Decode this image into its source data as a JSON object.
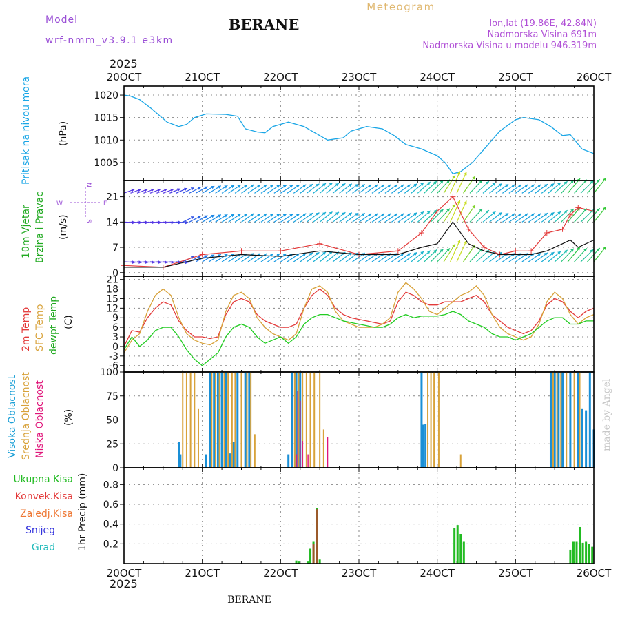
{
  "header": {
    "model_label": "Model",
    "model_name": "wrf-nmm_v3.9.1 e3km",
    "title": "BERANE",
    "meteogram_label": "Meteogram",
    "lonlat": "lon,lat (19.86E, 42.84N)",
    "altitude": "Nadmorska Visina 691m",
    "model_altitude": "Nadmorska Visina u modelu 946.319m",
    "year_top": "2025",
    "year_bottom": "2025",
    "footer": "BERANE",
    "watermark": "made by Angel"
  },
  "colors": {
    "pressure": "#1aa6e6",
    "t2m": "#e33a3a",
    "tsfc": "#d8a23a",
    "dewpt": "#22cc22",
    "high_cloud": "#1a8fd6",
    "mid_cloud": "#d8a23a",
    "low_cloud": "#e0157a",
    "total_rain": "#22bb22",
    "conv_rain": "#e33a3a",
    "frz_rain": "#ee7733",
    "snow": "#3333dd",
    "hail": "#22bbbb",
    "wind_purple": "#8a2be2"
  },
  "x_axis": {
    "ticks": [
      "20OCT",
      "21OCT",
      "22OCT",
      "23OCT",
      "24OCT",
      "25OCT",
      "26OCT"
    ]
  },
  "panels": {
    "pressure": {
      "ylabel": "Pritisak na nivou mora",
      "unit": "(hPa)"
    },
    "wind": {
      "ylabel1": "10m Vjetar",
      "ylabel2": "Brzina i Pravac",
      "unit": "(m/s)",
      "compass": "N",
      "compass_w": "W",
      "compass_e": "E",
      "compass_s": "S"
    },
    "temp": {
      "ylabel1": "2m Temp",
      "ylabel2": "SFC Temp",
      "ylabel3": "dewpt Temp",
      "unit": "(C)"
    },
    "cloud": {
      "ylabel1": "Visoka Oblacnost",
      "ylabel2": "Srednja Oblacnost",
      "ylabel3": "Niska Oblacnost",
      "unit": "(%)"
    },
    "precip": {
      "leg1": "Ukupna Kisa",
      "leg2": "Konvek.Kisa",
      "leg3": "Zaledj.Kisa",
      "leg4": "Snijeg",
      "leg5": "Grad",
      "unit": "1hr Precip (mm)"
    }
  },
  "chart_data": [
    {
      "type": "line",
      "title": "Pritisak na nivou mora",
      "ylabel": "(hPa)",
      "yticks": [
        1005,
        1010,
        1015,
        1020
      ],
      "ylim": [
        1001,
        1022
      ],
      "x_days": [
        0,
        0.08,
        0.2,
        0.35,
        0.55,
        0.7,
        0.8,
        0.9,
        1.05,
        1.3,
        1.45,
        1.55,
        1.7,
        1.8,
        1.9,
        2.1,
        2.3,
        2.5,
        2.6,
        2.8,
        2.9,
        3.1,
        3.3,
        3.45,
        3.6,
        3.8,
        4.0,
        4.1,
        4.2,
        4.3,
        4.45,
        4.6,
        4.8,
        5.0,
        5.1,
        5.3,
        5.45,
        5.6,
        5.7,
        5.85,
        6.0
      ],
      "values": [
        1020,
        1019.8,
        1019,
        1017,
        1014,
        1013,
        1013.5,
        1015,
        1015.8,
        1015.7,
        1015.3,
        1012.5,
        1011.8,
        1011.6,
        1013,
        1014,
        1013,
        1011,
        1010,
        1010.5,
        1012,
        1013,
        1012.5,
        1011,
        1009,
        1008,
        1006.5,
        1005,
        1002.5,
        1003,
        1005,
        1008,
        1012,
        1014.5,
        1015,
        1014.5,
        1013,
        1011,
        1011.2,
        1008,
        1007
      ]
    },
    {
      "type": "line",
      "title": "10m Vjetar Brzina i Pravac",
      "ylabel": "(m/s)",
      "yticks": [
        0,
        7,
        14,
        21
      ],
      "ylim": [
        -1,
        25.5
      ],
      "series": [
        {
          "name": "wind speed",
          "x_days": [
            0,
            0.5,
            1,
            1.5,
            2,
            2.5,
            3,
            3.5,
            3.8,
            4.0,
            4.2,
            4.4,
            4.6,
            4.8,
            5.0,
            5.2,
            5.4,
            5.6,
            5.7,
            5.8,
            6.0
          ],
          "values": [
            1.5,
            1.5,
            4,
            5,
            4.5,
            6,
            5,
            5,
            7,
            8,
            14,
            8,
            6,
            5,
            5,
            5,
            6,
            8,
            9,
            7,
            9
          ]
        },
        {
          "name": "wind gust",
          "x_days": [
            0,
            0.5,
            1,
            1.5,
            2,
            2.5,
            3,
            3.5,
            3.8,
            4.0,
            4.2,
            4.4,
            4.6,
            4.8,
            5.0,
            5.2,
            5.4,
            5.6,
            5.7,
            5.8,
            6.0
          ],
          "values": [
            2,
            1.5,
            5,
            6,
            6,
            8,
            5,
            6,
            11,
            17,
            21,
            12,
            7,
            5,
            6,
            6,
            11,
            12,
            16,
            18,
            17
          ]
        }
      ],
      "direction_rows_ms": [
        3,
        14,
        22
      ]
    },
    {
      "type": "line",
      "title": "2m Temp / SFC Temp / dewpt Temp",
      "ylabel": "(C)",
      "yticks": [
        -6,
        -3,
        0,
        3,
        6,
        9,
        12,
        15,
        18,
        21
      ],
      "ylim": [
        -8,
        22
      ],
      "x_days": [
        0,
        0.1,
        0.2,
        0.3,
        0.4,
        0.5,
        0.6,
        0.7,
        0.8,
        0.9,
        1.0,
        1.1,
        1.2,
        1.3,
        1.4,
        1.5,
        1.6,
        1.7,
        1.8,
        1.9,
        2.0,
        2.1,
        2.2,
        2.3,
        2.4,
        2.5,
        2.6,
        2.7,
        2.8,
        2.9,
        3.0,
        3.1,
        3.2,
        3.3,
        3.4,
        3.5,
        3.6,
        3.7,
        3.8,
        3.9,
        4.0,
        4.1,
        4.2,
        4.3,
        4.4,
        4.5,
        4.6,
        4.7,
        4.8,
        4.9,
        5.0,
        5.1,
        5.2,
        5.3,
        5.4,
        5.5,
        5.6,
        5.7,
        5.8,
        5.9,
        6.0
      ],
      "series": [
        {
          "name": "2m Temp",
          "values": [
            0,
            5,
            4.5,
            9,
            12,
            14,
            13,
            8,
            5,
            3,
            3,
            2.5,
            3,
            10,
            14,
            15,
            14,
            10,
            8,
            7,
            6,
            6,
            7,
            12,
            16,
            18,
            16,
            12,
            10,
            9,
            8.5,
            8,
            7.5,
            7,
            8,
            14,
            17,
            16,
            14,
            13,
            13,
            14,
            14,
            14,
            15,
            16,
            14,
            10,
            8,
            6,
            5,
            4,
            5,
            8,
            13,
            15,
            14,
            11,
            9,
            11,
            12
          ]
        },
        {
          "name": "SFC Temp",
          "values": [
            -2,
            2,
            4,
            11,
            16,
            18,
            16,
            9,
            4,
            2,
            1,
            0.5,
            2,
            11,
            16,
            17,
            15,
            9,
            6,
            4,
            3,
            2,
            4,
            12,
            18,
            19,
            17,
            11,
            8,
            7,
            6,
            6,
            6,
            7,
            9,
            17,
            20,
            18,
            15,
            11,
            10,
            12,
            14,
            16,
            17,
            19,
            16,
            10,
            6,
            4,
            3,
            2,
            3,
            7,
            14,
            17,
            15,
            10,
            7,
            9,
            10
          ]
        },
        {
          "name": "dewpt Temp",
          "values": [
            -1,
            3,
            0,
            2,
            5,
            6,
            6,
            3,
            -1,
            -4,
            -6,
            -4,
            -2,
            3,
            6,
            7,
            6,
            3,
            1,
            2,
            3,
            1,
            3,
            7,
            9,
            10,
            10,
            9,
            8,
            7.5,
            7,
            6.5,
            6,
            6,
            7,
            9,
            10,
            9,
            9.5,
            9.5,
            9.5,
            10,
            11,
            10,
            8,
            7,
            6,
            4,
            3,
            3,
            2,
            3,
            4,
            6,
            8,
            9,
            9,
            7,
            7,
            8,
            8
          ]
        }
      ]
    },
    {
      "type": "bar",
      "title": "Visoka / Srednja / Niska Oblacnost",
      "ylabel": "(%)",
      "yticks": [
        0,
        25,
        50,
        75,
        100
      ],
      "ylim": [
        0,
        100
      ],
      "series": [
        {
          "name": "Visoka Oblacnost",
          "x_days": [
            0.7,
            0.72,
            1.05,
            1.1,
            1.15,
            1.2,
            1.25,
            1.3,
            1.35,
            1.4,
            1.45,
            1.55,
            1.6,
            2.1,
            2.15,
            2.2,
            2.25,
            3.8,
            3.82,
            3.85,
            5.45,
            5.5,
            5.55,
            5.6,
            5.7,
            5.8,
            5.85,
            5.9,
            5.95,
            6.0
          ],
          "values": [
            27,
            14,
            14,
            100,
            100,
            100,
            100,
            100,
            15,
            27,
            100,
            100,
            100,
            14,
            100,
            100,
            100,
            100,
            45,
            46,
            100,
            100,
            100,
            100,
            100,
            100,
            62,
            60,
            100,
            40
          ]
        },
        {
          "name": "Srednja Oblacnost",
          "x_days": [
            0.75,
            0.8,
            0.85,
            0.9,
            0.95,
            1.0,
            1.12,
            1.17,
            1.22,
            1.28,
            1.33,
            1.38,
            1.42,
            1.5,
            1.57,
            1.62,
            1.67,
            2.18,
            2.23,
            2.28,
            2.33,
            2.38,
            2.43,
            2.5,
            2.55,
            2.6,
            3.88,
            3.92,
            3.96,
            4.02,
            4.3,
            5.48,
            5.53,
            5.58,
            5.65,
            5.75,
            5.82
          ],
          "values": [
            100,
            100,
            100,
            100,
            62,
            0,
            100,
            100,
            100,
            100,
            100,
            100,
            100,
            100,
            100,
            100,
            35,
            100,
            100,
            100,
            100,
            100,
            100,
            100,
            40,
            0,
            100,
            100,
            100,
            100,
            14,
            100,
            100,
            100,
            100,
            100,
            100
          ]
        },
        {
          "name": "Niska Oblacnost",
          "x_days": [
            2.2,
            2.22,
            2.25,
            2.28,
            2.35,
            2.6
          ],
          "values": [
            14,
            80,
            70,
            28,
            14,
            32
          ]
        }
      ]
    },
    {
      "type": "bar",
      "title": "1hr Precip",
      "ylabel": "(mm)",
      "yticks": [
        0.2,
        0.4,
        0.6,
        0.8
      ],
      "ylim": [
        0,
        0.97
      ],
      "series": [
        {
          "name": "Ukupna Kisa",
          "x_days": [
            2.2,
            2.23,
            2.35,
            2.38,
            2.42,
            2.46,
            2.5,
            4.22,
            4.26,
            4.3,
            4.34,
            5.7,
            5.74,
            5.78,
            5.82,
            5.86,
            5.9,
            5.94,
            5.98
          ],
          "values": [
            0.03,
            0.02,
            0.02,
            0.15,
            0.22,
            0.56,
            0.04,
            0.36,
            0.39,
            0.3,
            0.22,
            0.14,
            0.22,
            0.22,
            0.37,
            0.21,
            0.22,
            0.2,
            0.17
          ]
        },
        {
          "name": "Konvek.Kisa",
          "x_days": [
            2.42,
            2.46
          ],
          "values": [
            0.2,
            0.55
          ]
        }
      ]
    }
  ]
}
